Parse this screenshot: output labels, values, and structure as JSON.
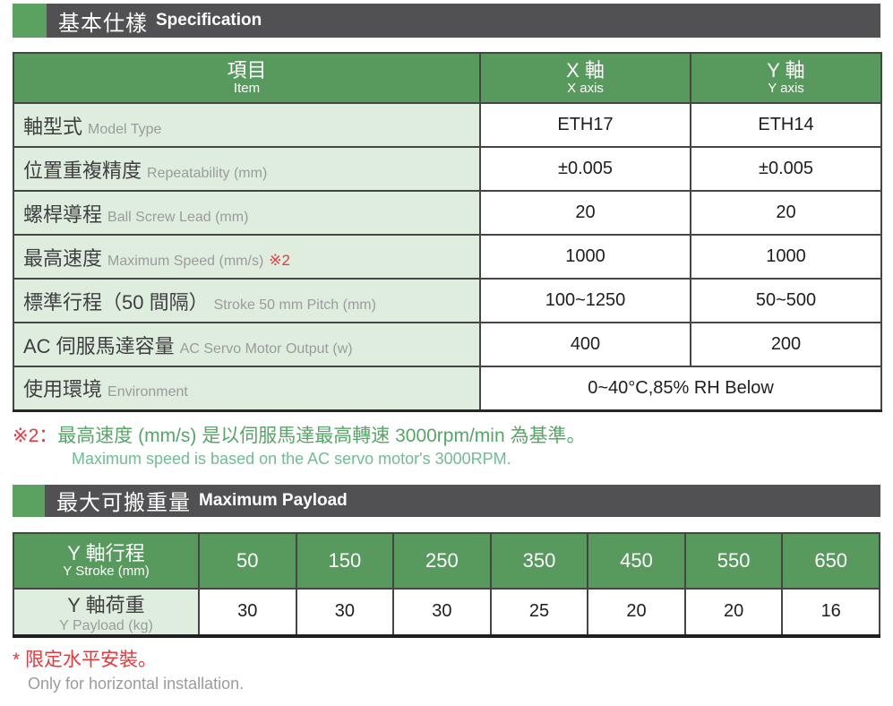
{
  "colors": {
    "bar_background": "#515153",
    "accent_green": "#5ba261",
    "table_header_green": "#58995e",
    "label_cell_green": "#dfeddf",
    "note_red": "#e8383d",
    "note_green": "#57a567",
    "note_green_light": "#6fbd93",
    "english_label_gray": "#9b9b9b"
  },
  "section1": {
    "title_cn": "基本仕樣",
    "title_en": "Specification"
  },
  "spec_table": {
    "header": {
      "item_cn": "項目",
      "item_en": "Item",
      "x_cn": "X 軸",
      "x_en": "X axis",
      "y_cn": "Y 軸",
      "y_en": "Y axis"
    },
    "rows": [
      {
        "label_cn": "軸型式",
        "label_en": "Model Type",
        "x": "ETH17",
        "y": "ETH14"
      },
      {
        "label_cn": "位置重複精度",
        "label_en": "Repeatability (mm)",
        "x": "±0.005",
        "y": "±0.005"
      },
      {
        "label_cn": "螺桿導程",
        "label_en": "Ball Screw Lead (mm)",
        "x": "20",
        "y": "20"
      },
      {
        "label_cn": "最高速度",
        "label_en": "Maximum Speed (mm/s)",
        "label_mark": "※2",
        "x": "1000",
        "y": "1000"
      },
      {
        "label_cn": "標準行程（50 間隔）",
        "label_en": "Stroke 50 mm Pitch (mm)",
        "x": "100~1250",
        "y": "50~500"
      },
      {
        "label_cn": "AC 伺服馬達容量",
        "label_en": "AC Servo Motor Output (w)",
        "x": "400",
        "y": "200"
      },
      {
        "label_cn": "使用環境",
        "label_en": "Environment",
        "span_value": "0~40°C,85% RH Below"
      }
    ]
  },
  "note": {
    "mark": "※2：",
    "line_cn": "最高速度 (mm/s) 是以伺服馬達最高轉速 3000rpm/min 為基準。",
    "line_en": "Maximum speed is based on the AC servo motor's 3000RPM."
  },
  "section2": {
    "title_cn": "最大可搬重量",
    "title_en": "Maximum Payload"
  },
  "payload_table": {
    "stroke_label_cn": "Y 軸行程",
    "stroke_label_en": "Y Stroke (mm)",
    "payload_label_cn": "Y 軸荷重",
    "payload_label_en": "Y Payload (kg)",
    "strokes": [
      "50",
      "150",
      "250",
      "350",
      "450",
      "550",
      "650"
    ],
    "payloads": [
      "30",
      "30",
      "30",
      "25",
      "20",
      "20",
      "16"
    ]
  },
  "footnote": {
    "line_cn": "* 限定水平安裝。",
    "line_en": "Only for horizontal installation."
  }
}
